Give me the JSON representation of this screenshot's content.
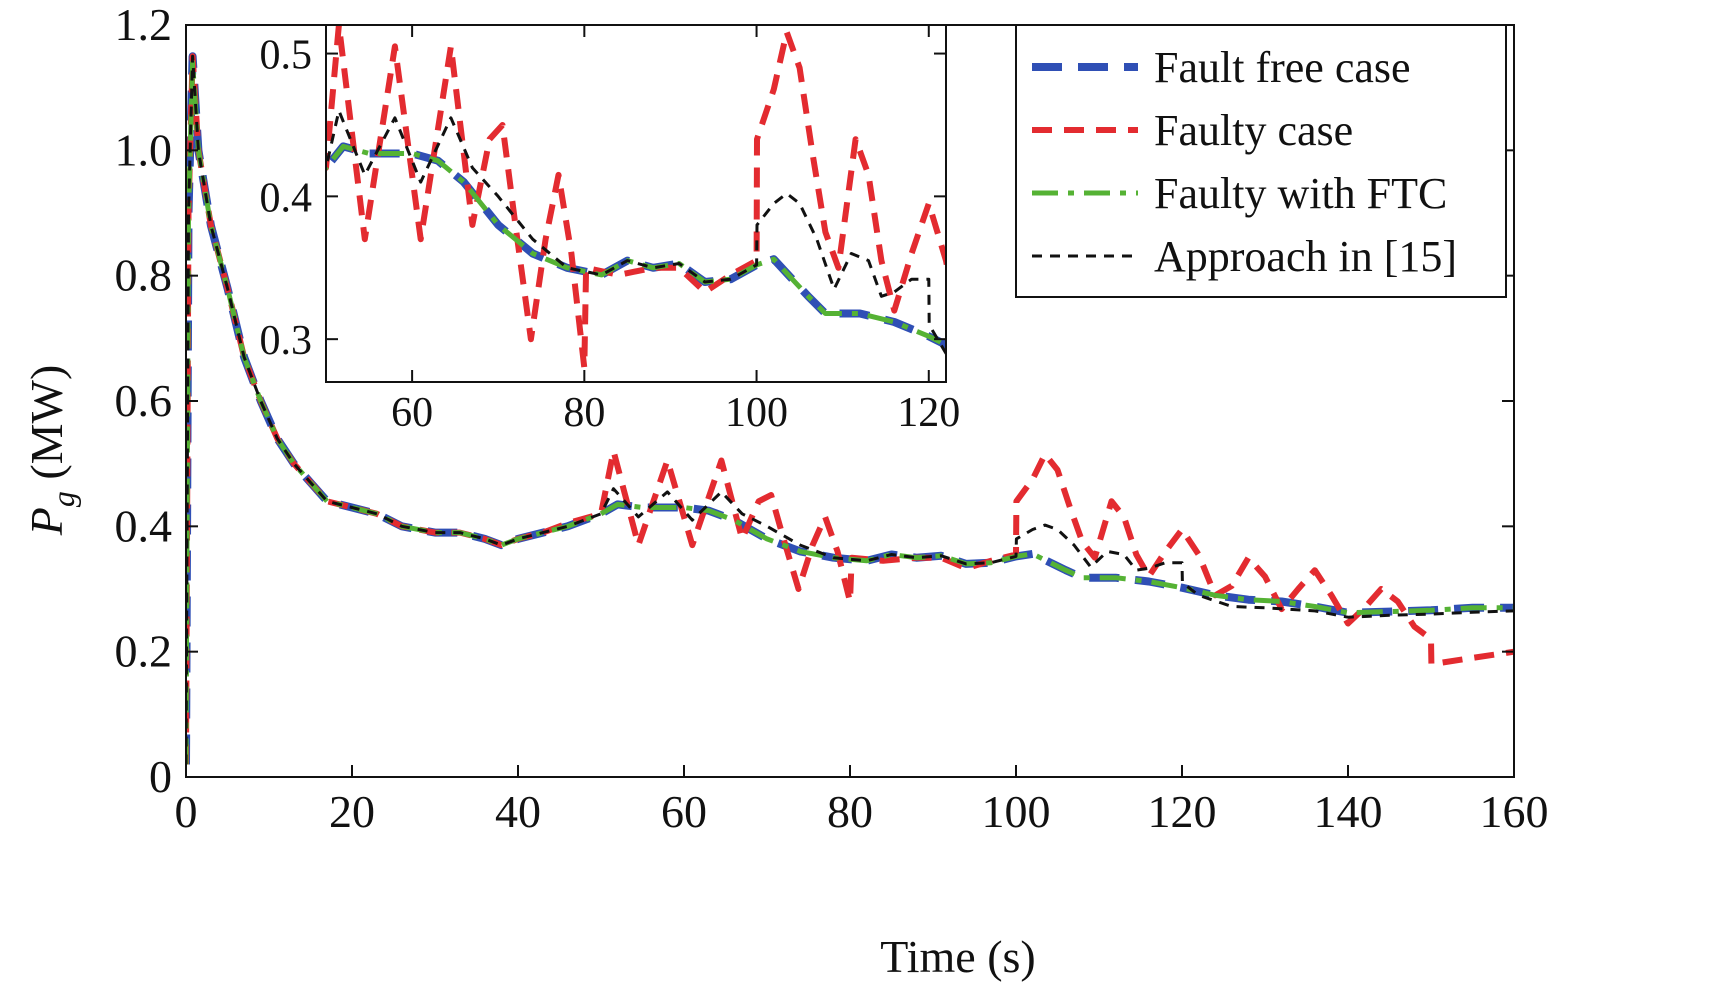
{
  "chart_data": [
    {
      "type": "line",
      "xlabel": "Time (s)",
      "ylabel_main": "P",
      "ylabel_sub": "g",
      "ylabel_unit": " (MW)",
      "xlim": [
        0,
        160
      ],
      "ylim": [
        0,
        1.2
      ],
      "x_ticks": [
        "0",
        "20",
        "40",
        "60",
        "80",
        "100",
        "120",
        "140",
        "160"
      ],
      "y_ticks": [
        "0",
        "0.2",
        "0.4",
        "0.6",
        "0.8",
        "1.0",
        "1.2"
      ],
      "grid": false,
      "legend_position": "top-right",
      "series": [
        {
          "name": "Fault free case",
          "color": "#2f4fb5",
          "style": "long-dash",
          "points": [
            [
              0,
              0.02
            ],
            [
              0.3,
              0.9
            ],
            [
              0.8,
              1.15
            ],
            [
              1.5,
              1.0
            ],
            [
              3,
              0.88
            ],
            [
              5,
              0.78
            ],
            [
              7,
              0.67
            ],
            [
              9,
              0.6
            ],
            [
              11,
              0.54
            ],
            [
              13,
              0.5
            ],
            [
              15,
              0.47
            ],
            [
              17,
              0.44
            ],
            [
              20,
              0.43
            ],
            [
              23,
              0.42
            ],
            [
              26,
              0.4
            ],
            [
              30,
              0.39
            ],
            [
              33,
              0.39
            ],
            [
              36,
              0.38
            ],
            [
              38,
              0.37
            ],
            [
              40,
              0.38
            ],
            [
              43,
              0.39
            ],
            [
              46,
              0.4
            ],
            [
              50,
              0.42
            ],
            [
              52,
              0.435
            ],
            [
              55,
              0.43
            ],
            [
              60,
              0.43
            ],
            [
              63,
              0.425
            ],
            [
              66,
              0.41
            ],
            [
              70,
              0.38
            ],
            [
              74,
              0.36
            ],
            [
              78,
              0.35
            ],
            [
              82,
              0.345
            ],
            [
              85,
              0.355
            ],
            [
              88,
              0.35
            ],
            [
              91,
              0.353
            ],
            [
              94,
              0.34
            ],
            [
              97,
              0.342
            ],
            [
              100,
              0.352
            ],
            [
              102,
              0.356
            ],
            [
              104,
              0.343
            ],
            [
              106,
              0.33
            ],
            [
              108,
              0.318
            ],
            [
              112,
              0.318
            ],
            [
              116,
              0.312
            ],
            [
              120,
              0.302
            ],
            [
              124,
              0.29
            ],
            [
              128,
              0.283
            ],
            [
              132,
              0.28
            ],
            [
              136,
              0.272
            ],
            [
              140,
              0.262
            ],
            [
              145,
              0.264
            ],
            [
              150,
              0.266
            ],
            [
              155,
              0.27
            ],
            [
              160,
              0.27
            ]
          ]
        },
        {
          "name": "Faulty case",
          "color": "#e32b30",
          "style": "dash",
          "points": [
            [
              0,
              0.02
            ],
            [
              0.3,
              0.9
            ],
            [
              0.8,
              1.15
            ],
            [
              1.5,
              1.0
            ],
            [
              3,
              0.88
            ],
            [
              5,
              0.78
            ],
            [
              7,
              0.67
            ],
            [
              9,
              0.6
            ],
            [
              11,
              0.54
            ],
            [
              13,
              0.5
            ],
            [
              15,
              0.47
            ],
            [
              17,
              0.44
            ],
            [
              20,
              0.43
            ],
            [
              23,
              0.42
            ],
            [
              26,
              0.4
            ],
            [
              30,
              0.39
            ],
            [
              33,
              0.39
            ],
            [
              36,
              0.38
            ],
            [
              38,
              0.37
            ],
            [
              40,
              0.38
            ],
            [
              43,
              0.39
            ],
            [
              46,
              0.405
            ],
            [
              50,
              0.42
            ],
            [
              51.5,
              0.52
            ],
            [
              54.5,
              0.37
            ],
            [
              58,
              0.505
            ],
            [
              61,
              0.37
            ],
            [
              64.5,
              0.505
            ],
            [
              67,
              0.38
            ],
            [
              69,
              0.44
            ],
            [
              70.5,
              0.45
            ],
            [
              72,
              0.38
            ],
            [
              73.8,
              0.3
            ],
            [
              75.5,
              0.37
            ],
            [
              77,
              0.415
            ],
            [
              78.5,
              0.36
            ],
            [
              80,
              0.28
            ],
            [
              80.2,
              0.35
            ],
            [
              84,
              0.345
            ],
            [
              88,
              0.35
            ],
            [
              91,
              0.35
            ],
            [
              94,
              0.333
            ],
            [
              97,
              0.345
            ],
            [
              100,
              0.355
            ],
            [
              100.05,
              0.44
            ],
            [
              102,
              0.475
            ],
            [
              103.5,
              0.515
            ],
            [
              105,
              0.49
            ],
            [
              106.5,
              0.43
            ],
            [
              108,
              0.375
            ],
            [
              109.5,
              0.35
            ],
            [
              111.5,
              0.44
            ],
            [
              113,
              0.415
            ],
            [
              114.5,
              0.355
            ],
            [
              116,
              0.32
            ],
            [
              118,
              0.36
            ],
            [
              120,
              0.395
            ],
            [
              122,
              0.355
            ],
            [
              124,
              0.29
            ],
            [
              126,
              0.305
            ],
            [
              128,
              0.35
            ],
            [
              130,
              0.32
            ],
            [
              132,
              0.268
            ],
            [
              134,
              0.3
            ],
            [
              136,
              0.33
            ],
            [
              138,
              0.29
            ],
            [
              140,
              0.245
            ],
            [
              142,
              0.27
            ],
            [
              144,
              0.3
            ],
            [
              146,
              0.28
            ],
            [
              148,
              0.24
            ],
            [
              150,
              0.22
            ],
            [
              150.05,
              0.18
            ],
            [
              155,
              0.19
            ],
            [
              160,
              0.2
            ]
          ]
        },
        {
          "name": "Faulty with FTC",
          "color": "#55b234",
          "style": "dash-dot",
          "points": [
            [
              0,
              0.02
            ],
            [
              0.3,
              0.9
            ],
            [
              0.8,
              1.14
            ],
            [
              1.5,
              1.0
            ],
            [
              3,
              0.88
            ],
            [
              5,
              0.78
            ],
            [
              7,
              0.67
            ],
            [
              9,
              0.6
            ],
            [
              11,
              0.54
            ],
            [
              13,
              0.5
            ],
            [
              15,
              0.47
            ],
            [
              17,
              0.44
            ],
            [
              20,
              0.43
            ],
            [
              23,
              0.42
            ],
            [
              26,
              0.4
            ],
            [
              30,
              0.39
            ],
            [
              33,
              0.39
            ],
            [
              36,
              0.38
            ],
            [
              38,
              0.37
            ],
            [
              40,
              0.38
            ],
            [
              43,
              0.39
            ],
            [
              46,
              0.4
            ],
            [
              50,
              0.42
            ],
            [
              52,
              0.435
            ],
            [
              55,
              0.43
            ],
            [
              60,
              0.43
            ],
            [
              63,
              0.425
            ],
            [
              66,
              0.41
            ],
            [
              70,
              0.38
            ],
            [
              74,
              0.36
            ],
            [
              78,
              0.35
            ],
            [
              82,
              0.345
            ],
            [
              85,
              0.355
            ],
            [
              88,
              0.35
            ],
            [
              91,
              0.353
            ],
            [
              94,
              0.34
            ],
            [
              97,
              0.342
            ],
            [
              100,
              0.352
            ],
            [
              102,
              0.356
            ],
            [
              104,
              0.343
            ],
            [
              106,
              0.33
            ],
            [
              108,
              0.318
            ],
            [
              112,
              0.318
            ],
            [
              116,
              0.312
            ],
            [
              120,
              0.302
            ],
            [
              124,
              0.29
            ],
            [
              128,
              0.283
            ],
            [
              132,
              0.28
            ],
            [
              136,
              0.272
            ],
            [
              140,
              0.262
            ],
            [
              145,
              0.264
            ],
            [
              150,
              0.266
            ],
            [
              155,
              0.27
            ],
            [
              160,
              0.27
            ]
          ]
        },
        {
          "name": "Approach in [15]",
          "color": "#111111",
          "style": "short-dash",
          "points": [
            [
              0,
              0.02
            ],
            [
              0.3,
              0.9
            ],
            [
              0.8,
              1.15
            ],
            [
              1.5,
              1.0
            ],
            [
              3,
              0.88
            ],
            [
              5,
              0.78
            ],
            [
              7,
              0.67
            ],
            [
              9,
              0.6
            ],
            [
              11,
              0.54
            ],
            [
              13,
              0.5
            ],
            [
              15,
              0.47
            ],
            [
              17,
              0.44
            ],
            [
              20,
              0.43
            ],
            [
              23,
              0.42
            ],
            [
              26,
              0.4
            ],
            [
              30,
              0.39
            ],
            [
              33,
              0.39
            ],
            [
              36,
              0.38
            ],
            [
              38,
              0.37
            ],
            [
              40,
              0.38
            ],
            [
              43,
              0.39
            ],
            [
              46,
              0.4
            ],
            [
              50,
              0.42
            ],
            [
              51.5,
              0.46
            ],
            [
              54.5,
              0.415
            ],
            [
              58,
              0.455
            ],
            [
              61,
              0.41
            ],
            [
              64.5,
              0.455
            ],
            [
              67,
              0.42
            ],
            [
              70,
              0.4
            ],
            [
              74,
              0.37
            ],
            [
              78,
              0.35
            ],
            [
              82,
              0.345
            ],
            [
              85,
              0.355
            ],
            [
              88,
              0.35
            ],
            [
              91,
              0.353
            ],
            [
              94,
              0.34
            ],
            [
              97,
              0.342
            ],
            [
              100,
              0.352
            ],
            [
              100.05,
              0.38
            ],
            [
              102,
              0.395
            ],
            [
              103.5,
              0.402
            ],
            [
              105,
              0.395
            ],
            [
              107,
              0.37
            ],
            [
              109,
              0.335
            ],
            [
              111,
              0.36
            ],
            [
              113,
              0.355
            ],
            [
              114.5,
              0.33
            ],
            [
              116,
              0.333
            ],
            [
              118,
              0.342
            ],
            [
              120,
              0.342
            ],
            [
              120.05,
              0.31
            ],
            [
              122,
              0.29
            ],
            [
              126,
              0.272
            ],
            [
              130,
              0.27
            ],
            [
              136,
              0.265
            ],
            [
              140,
              0.255
            ],
            [
              145,
              0.258
            ],
            [
              150,
              0.26
            ],
            [
              155,
              0.263
            ],
            [
              160,
              0.265
            ]
          ]
        }
      ]
    },
    {
      "type": "line",
      "role": "inset",
      "xlim": [
        50,
        122
      ],
      "ylim": [
        0.27,
        0.52
      ],
      "x_ticks": [
        "60",
        "80",
        "100",
        "120"
      ],
      "y_ticks": [
        "0.3",
        "0.4",
        "0.5"
      ],
      "note_series": "same four series as main chart, zoomed"
    }
  ]
}
